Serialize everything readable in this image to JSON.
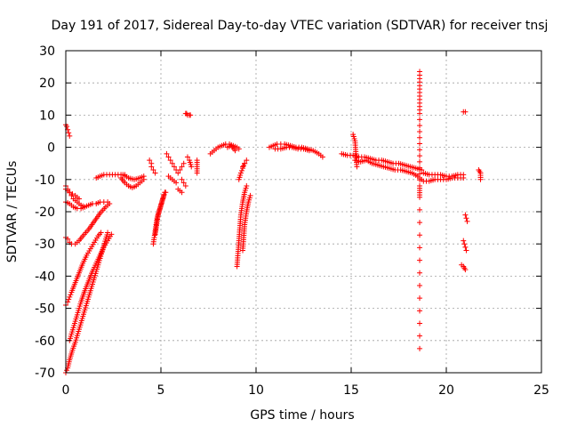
{
  "chart_data": {
    "type": "scatter",
    "title": "Day 191 of 2017, Sidereal Day-to-day VTEC variation (SDTVAR) for receiver tnsj",
    "xlabel": "GPS time / hours",
    "ylabel": "SDTVAR / TECUs",
    "xlim": [
      0,
      25
    ],
    "ylim": [
      -70,
      30
    ],
    "xticks": [
      0,
      5,
      10,
      15,
      20,
      25
    ],
    "yticks": [
      -70,
      -60,
      -50,
      -40,
      -30,
      -20,
      -10,
      0,
      10,
      20,
      30
    ],
    "grid": true,
    "marker": "+",
    "color": "#ff0000",
    "segments": [
      {
        "x": [
          0.0,
          0.05,
          0.1,
          0.15,
          0.2
        ],
        "y": [
          7,
          6.5,
          5.5,
          4.5,
          3.5
        ]
      },
      {
        "x": [
          0.0,
          0.1,
          0.2,
          0.3,
          0.4,
          0.6,
          0.8,
          1.0
        ],
        "y": [
          -12,
          -13,
          -14,
          -15,
          -16,
          -17,
          -18,
          -18.5
        ]
      },
      {
        "x": [
          0.0,
          0.1,
          0.2,
          0.35,
          0.5,
          0.7
        ],
        "y": [
          -13,
          -13.5,
          -14,
          -14.5,
          -15,
          -16
        ]
      },
      {
        "x": [
          0.0,
          0.2,
          0.4,
          0.6,
          0.8,
          1.0,
          1.2,
          1.4,
          1.6,
          1.8,
          2.0,
          2.2
        ],
        "y": [
          -17,
          -17.5,
          -18.5,
          -19,
          -19,
          -18.5,
          -18,
          -17.5,
          -17.5,
          -17,
          -17,
          -17
        ]
      },
      {
        "x": [
          0.0,
          0.1,
          0.2,
          0.3,
          0.5,
          0.7,
          0.9,
          1.2,
          1.5,
          1.8,
          2.1,
          2.3
        ],
        "y": [
          -28,
          -28.5,
          -29.5,
          -30,
          -30,
          -29,
          -27.5,
          -25.5,
          -23,
          -20.5,
          -18.5,
          -17.5
        ]
      },
      {
        "x": [
          0.0,
          0.1,
          0.2,
          0.3,
          0.5,
          0.7,
          0.9,
          1.1,
          1.3,
          1.5,
          1.7,
          1.85
        ],
        "y": [
          -49,
          -48,
          -46.5,
          -45,
          -42,
          -39,
          -36,
          -33.5,
          -31.5,
          -29.5,
          -27.5,
          -26.5
        ]
      },
      {
        "x": [
          0.0,
          0.1,
          0.2,
          0.35,
          0.5,
          0.7,
          0.9,
          1.1,
          1.3,
          1.5,
          1.7,
          1.9,
          2.1,
          2.2
        ],
        "y": [
          -70,
          -68.5,
          -66,
          -63,
          -60.5,
          -56.5,
          -52.5,
          -48.5,
          -44.5,
          -40.5,
          -36.5,
          -32.5,
          -28.5,
          -26.5
        ]
      },
      {
        "x": [
          0.2,
          0.4,
          0.6,
          0.8,
          1.0,
          1.2,
          1.4,
          1.6,
          1.8,
          2.0,
          2.2,
          2.4
        ],
        "y": [
          -60,
          -56,
          -52,
          -48,
          -44.5,
          -41.5,
          -38.5,
          -36,
          -33.5,
          -31,
          -29,
          -27
        ]
      },
      {
        "x": [
          1.6,
          1.8,
          2.0,
          2.3,
          2.6,
          2.9,
          3.1
        ],
        "y": [
          -9.5,
          -9,
          -8.5,
          -8.5,
          -8.5,
          -8.5,
          -8.5
        ]
      },
      {
        "x": [
          2.9,
          3.1,
          3.3,
          3.5,
          3.7,
          3.9,
          4.1
        ],
        "y": [
          -9.5,
          -11,
          -12,
          -12.5,
          -12,
          -11,
          -10
        ]
      },
      {
        "x": [
          3.0,
          3.3,
          3.6,
          3.9,
          4.1
        ],
        "y": [
          -8.5,
          -9.5,
          -10,
          -9.5,
          -9
        ]
      },
      {
        "x": [
          4.4,
          4.5,
          4.5,
          4.6,
          4.7
        ],
        "y": [
          -4,
          -5,
          -6,
          -7,
          -8
        ]
      },
      {
        "x": [
          4.6,
          4.65,
          4.7,
          4.75,
          4.8,
          4.9,
          5.0,
          5.1,
          5.2
        ],
        "y": [
          -30,
          -28,
          -26,
          -24,
          -22,
          -20,
          -18,
          -16,
          -14
        ]
      },
      {
        "x": [
          4.7,
          4.75,
          4.8,
          4.85,
          4.95,
          5.05,
          5.15,
          5.25
        ],
        "y": [
          -27,
          -25,
          -23,
          -21,
          -19,
          -17,
          -15,
          -14
        ]
      },
      {
        "x": [
          5.3,
          5.4,
          5.5,
          5.6,
          5.7,
          5.8,
          5.9,
          6.0,
          6.1,
          6.2
        ],
        "y": [
          -2,
          -3,
          -4,
          -5,
          -6,
          -7,
          -8,
          -7,
          -6,
          -5
        ]
      },
      {
        "x": [
          5.4,
          5.5,
          5.6,
          5.7,
          5.8
        ],
        "y": [
          -9,
          -9.5,
          -10,
          -10.5,
          -11
        ]
      },
      {
        "x": [
          5.9,
          6.0,
          6.1
        ],
        "y": [
          -13,
          -13.5,
          -14
        ]
      },
      {
        "x": [
          6.1,
          6.2,
          6.3
        ],
        "y": [
          -10,
          -11,
          -12
        ]
      },
      {
        "x": [
          6.3,
          6.35,
          6.4,
          6.5,
          6.55
        ],
        "y": [
          10.5,
          10.5,
          10,
          10,
          10
        ]
      },
      {
        "x": [
          6.4,
          6.5,
          6.6
        ],
        "y": [
          -3,
          -4,
          -6
        ]
      },
      {
        "x": [
          6.9,
          6.9,
          6.9
        ],
        "y": [
          -4,
          -6,
          -8
        ]
      },
      {
        "x": [
          7.6,
          7.7,
          7.8,
          7.9,
          8.0,
          8.2,
          8.4,
          8.6,
          8.8,
          9.0,
          9.1
        ],
        "y": [
          -2,
          -1.5,
          -1,
          -0.5,
          0,
          0.5,
          1,
          1,
          0.5,
          0,
          -0.5
        ]
      },
      {
        "x": [
          8.5,
          8.7,
          8.9
        ],
        "y": [
          0,
          0.5,
          -1
        ]
      },
      {
        "x": [
          9.0,
          9.05,
          9.1,
          9.15,
          9.2,
          9.3,
          9.4,
          9.5
        ],
        "y": [
          -37,
          -33,
          -29,
          -25,
          -21,
          -17,
          -14,
          -12
        ]
      },
      {
        "x": [
          9.3,
          9.35,
          9.4,
          9.5,
          9.6,
          9.7
        ],
        "y": [
          -32,
          -28,
          -24,
          -20,
          -17,
          -15
        ]
      },
      {
        "x": [
          9.1,
          9.2,
          9.3,
          9.4
        ],
        "y": [
          -10,
          -8,
          -6.5,
          -5
        ]
      },
      {
        "x": [
          9.3,
          9.4,
          9.5
        ],
        "y": [
          -6,
          -5,
          -4
        ]
      },
      {
        "x": [
          10.7,
          10.9,
          11.1,
          11.3,
          11.5,
          11.8,
          12.1,
          12.4,
          12.7,
          13.0,
          13.3,
          13.5
        ],
        "y": [
          0,
          0.5,
          1,
          1,
          1,
          0.5,
          0,
          0,
          -0.5,
          -1,
          -2,
          -3
        ]
      },
      {
        "x": [
          11.0,
          11.3,
          11.6,
          11.9,
          12.2,
          12.5,
          12.8
        ],
        "y": [
          -0.5,
          -0.5,
          0,
          0,
          -0.5,
          -0.5,
          -1
        ]
      },
      {
        "x": [
          14.5,
          14.8,
          15.1,
          15.4,
          15.7,
          16.0,
          16.3,
          16.6,
          16.9,
          17.2,
          17.5,
          17.8,
          18.1,
          18.4,
          18.7
        ],
        "y": [
          -2,
          -2.5,
          -2.5,
          -3,
          -3,
          -3.5,
          -4,
          -4,
          -4.5,
          -5,
          -5,
          -5.5,
          -6,
          -6.5,
          -7
        ]
      },
      {
        "x": [
          15.2,
          15.5,
          15.8,
          16.1,
          16.4,
          16.7,
          17.0,
          17.3,
          17.6,
          17.9,
          18.2,
          18.5,
          18.7
        ],
        "y": [
          -4,
          -4.5,
          -4,
          -5,
          -5.5,
          -6,
          -6.5,
          -7,
          -7,
          -7.5,
          -8,
          -9,
          -10
        ]
      },
      {
        "x": [
          15.1,
          15.2,
          15.3
        ],
        "y": [
          4,
          2,
          -6
        ]
      },
      {
        "x": [
          18.6,
          18.6,
          18.6,
          18.6,
          18.6
        ],
        "y": [
          23.5,
          10.5,
          -12,
          -15.5,
          -62.5
        ]
      },
      {
        "x": [
          18.8,
          19.1,
          19.4,
          19.7,
          20.0,
          20.3,
          20.6,
          20.9
        ],
        "y": [
          -8,
          -8.5,
          -8.5,
          -8.5,
          -9,
          -9,
          -8.5,
          -8.5
        ]
      },
      {
        "x": [
          18.8,
          19.1,
          19.4,
          19.7,
          20.0,
          20.3,
          20.6,
          20.9
        ],
        "y": [
          -10.5,
          -10.5,
          -10,
          -10,
          -10,
          -9.5,
          -9.5,
          -9.5
        ]
      },
      {
        "x": [
          20.9,
          21.0
        ],
        "y": [
          11,
          11
        ]
      },
      {
        "x": [
          21.0,
          21.05,
          21.1
        ],
        "y": [
          -21,
          -22,
          -23
        ]
      },
      {
        "x": [
          20.9,
          20.95,
          21.0,
          21.05
        ],
        "y": [
          -29,
          -30,
          -31,
          -32
        ]
      },
      {
        "x": [
          20.8,
          20.9,
          20.95,
          21.0
        ],
        "y": [
          -36.5,
          -37,
          -37.5,
          -38
        ]
      },
      {
        "x": [
          21.7,
          21.75,
          21.8,
          21.8
        ],
        "y": [
          -7,
          -7.5,
          -8,
          -10
        ]
      }
    ]
  }
}
